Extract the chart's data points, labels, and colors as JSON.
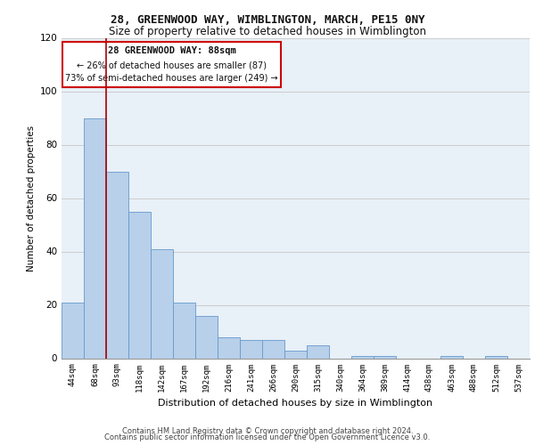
{
  "title1": "28, GREENWOOD WAY, WIMBLINGTON, MARCH, PE15 0NY",
  "title2": "Size of property relative to detached houses in Wimblington",
  "xlabel": "Distribution of detached houses by size in Wimblington",
  "ylabel": "Number of detached properties",
  "categories": [
    "44sqm",
    "68sqm",
    "93sqm",
    "118sqm",
    "142sqm",
    "167sqm",
    "192sqm",
    "216sqm",
    "241sqm",
    "266sqm",
    "290sqm",
    "315sqm",
    "340sqm",
    "364sqm",
    "389sqm",
    "414sqm",
    "438sqm",
    "463sqm",
    "488sqm",
    "512sqm",
    "537sqm"
  ],
  "values": [
    21,
    90,
    70,
    55,
    41,
    21,
    16,
    8,
    7,
    7,
    3,
    5,
    0,
    1,
    1,
    0,
    0,
    1,
    0,
    1,
    0
  ],
  "bar_color": "#b8d0ea",
  "bar_edge_color": "#6699cc",
  "grid_color": "#cccccc",
  "bg_color": "#e8f0f8",
  "vline_x_pos": 1.5,
  "vline_color": "#aa0000",
  "annotation_title": "28 GREENWOOD WAY: 88sqm",
  "annotation_line1": "← 26% of detached houses are smaller (87)",
  "annotation_line2": "73% of semi-detached houses are larger (249) →",
  "annotation_box_color": "#cc0000",
  "footer1": "Contains HM Land Registry data © Crown copyright and database right 2024.",
  "footer2": "Contains public sector information licensed under the Open Government Licence v3.0.",
  "ylim": [
    0,
    120
  ],
  "yticks": [
    0,
    20,
    40,
    60,
    80,
    100,
    120
  ]
}
